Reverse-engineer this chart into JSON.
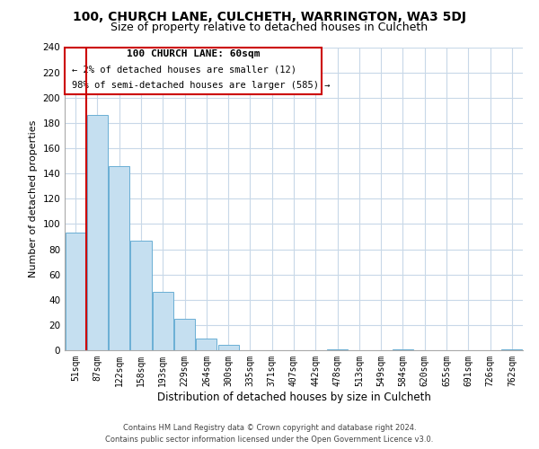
{
  "title": "100, CHURCH LANE, CULCHETH, WARRINGTON, WA3 5DJ",
  "subtitle": "Size of property relative to detached houses in Culcheth",
  "xlabel": "Distribution of detached houses by size in Culcheth",
  "ylabel": "Number of detached properties",
  "bar_color": "#c5dff0",
  "bar_edge_color": "#6aafd4",
  "bins": [
    "51sqm",
    "87sqm",
    "122sqm",
    "158sqm",
    "193sqm",
    "229sqm",
    "264sqm",
    "300sqm",
    "335sqm",
    "371sqm",
    "407sqm",
    "442sqm",
    "478sqm",
    "513sqm",
    "549sqm",
    "584sqm",
    "620sqm",
    "655sqm",
    "691sqm",
    "726sqm",
    "762sqm"
  ],
  "values": [
    93,
    186,
    146,
    87,
    46,
    25,
    9,
    4,
    0,
    0,
    0,
    0,
    1,
    0,
    0,
    1,
    0,
    0,
    0,
    0,
    1
  ],
  "highlight_index": 1,
  "ylim": [
    0,
    240
  ],
  "yticks": [
    0,
    20,
    40,
    60,
    80,
    100,
    120,
    140,
    160,
    180,
    200,
    220,
    240
  ],
  "annotation_title": "100 CHURCH LANE: 60sqm",
  "annotation_line1": "← 2% of detached houses are smaller (12)",
  "annotation_line2": "98% of semi-detached houses are larger (585) →",
  "annotation_box_color": "#ffffff",
  "annotation_box_edge_color": "#cc0000",
  "red_line_x": 1,
  "footer_line1": "Contains HM Land Registry data © Crown copyright and database right 2024.",
  "footer_line2": "Contains public sector information licensed under the Open Government Licence v3.0.",
  "background_color": "#ffffff",
  "grid_color": "#c8d8e8",
  "title_fontsize": 10,
  "subtitle_fontsize": 9,
  "ylabel_fontsize": 8,
  "xlabel_fontsize": 8.5,
  "tick_fontsize": 7,
  "annot_title_fontsize": 8,
  "annot_text_fontsize": 7.5,
  "footer_fontsize": 6
}
